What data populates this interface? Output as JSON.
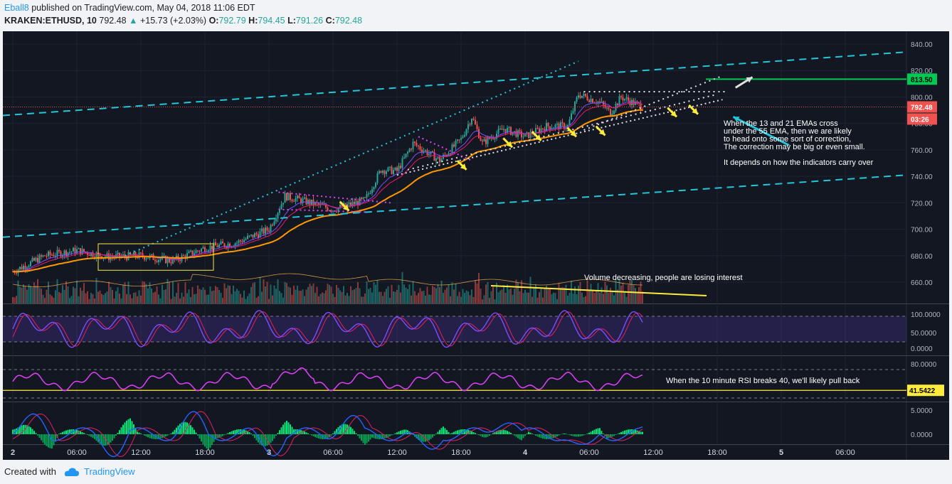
{
  "header": {
    "author": "Eball8",
    "published": "published on TradingView.com, May 04, 2018 11:06 EDT",
    "symbol": "KRAKEN:ETHUSD, 10",
    "last": "792.48",
    "change": "+15.73 (+2.03%)",
    "open_label": "O:",
    "open": "792.79",
    "high_label": "H:",
    "high": "794.45",
    "low_label": "L:",
    "low": "791.26",
    "close_label": "C:",
    "close": "792.48"
  },
  "colors": {
    "background": "#131722",
    "up": "#26a69a",
    "down": "#ef5350",
    "ema_fast": "#7c4dff",
    "ema_mid": "#e91e63",
    "ema_slow": "#ff9800",
    "channel": "#26c6da",
    "rsi": "#e040fb",
    "yellow": "#ffeb3b",
    "target": "#00c853"
  },
  "price_axis": [
    "840.00",
    "820.00",
    "800.00",
    "780.00",
    "760.00",
    "740.00",
    "720.00",
    "700.00",
    "680.00",
    "660.00"
  ],
  "price_tags": {
    "target": "813.50",
    "last": "792.48",
    "countdown": "03:26"
  },
  "stoch_axis": [
    "100.0000",
    "50.0000",
    "0.0000"
  ],
  "rsi_axis": [
    "80.0000",
    "41.5422"
  ],
  "macd_axis": [
    "5.0000",
    "0.0000"
  ],
  "time_axis": [
    "2",
    "06:00",
    "12:00",
    "18:00",
    "3",
    "06:00",
    "12:00",
    "18:00",
    "4",
    "06:00",
    "12:00",
    "18:00",
    "5",
    "06:00"
  ],
  "annotations": {
    "ema_note": "When the 13 and 21 EMAs cross\nunder the 55 EMA, then we are likely\nto head onto some sort of correction,\nThe correction may be big or even small.\n\nIt depends on how the indicators carry over",
    "volume_note": "Volume decreasing, people are losing interest",
    "rsi_note": "When the 10 minute RSI breaks 40, we'll likely pull back"
  },
  "chart_data": {
    "type": "candlestick",
    "symbol": "KRAKEN:ETHUSD",
    "interval": "10",
    "ylim": [
      650,
      845
    ],
    "approx_close_path": [
      {
        "t": "2 00:00",
        "price": 668
      },
      {
        "t": "2 03:00",
        "price": 680
      },
      {
        "t": "2 06:00",
        "price": 684
      },
      {
        "t": "2 09:00",
        "price": 679
      },
      {
        "t": "2 12:00",
        "price": 680
      },
      {
        "t": "2 15:00",
        "price": 676
      },
      {
        "t": "2 18:00",
        "price": 686
      },
      {
        "t": "2 21:00",
        "price": 690
      },
      {
        "t": "3 00:00",
        "price": 700
      },
      {
        "t": "3 01:30",
        "price": 725
      },
      {
        "t": "3 03:00",
        "price": 722
      },
      {
        "t": "3 06:00",
        "price": 715
      },
      {
        "t": "3 09:00",
        "price": 722
      },
      {
        "t": "3 10:30",
        "price": 745
      },
      {
        "t": "3 12:00",
        "price": 744
      },
      {
        "t": "3 13:30",
        "price": 765
      },
      {
        "t": "3 16:00",
        "price": 752
      },
      {
        "t": "3 18:00",
        "price": 768
      },
      {
        "t": "3 19:00",
        "price": 785
      },
      {
        "t": "3 20:00",
        "price": 765
      },
      {
        "t": "3 22:00",
        "price": 776
      },
      {
        "t": "4 00:00",
        "price": 770
      },
      {
        "t": "4 02:00",
        "price": 778
      },
      {
        "t": "4 04:00",
        "price": 778
      },
      {
        "t": "4 05:00",
        "price": 802
      },
      {
        "t": "4 07:00",
        "price": 796
      },
      {
        "t": "4 08:00",
        "price": 788
      },
      {
        "t": "4 09:00",
        "price": 800
      },
      {
        "t": "4 10:00",
        "price": 796
      },
      {
        "t": "4 11:00",
        "price": 792.48
      }
    ],
    "last_price": 792.48,
    "target_price": 813.5,
    "rsi_last": 41.5422
  }
}
